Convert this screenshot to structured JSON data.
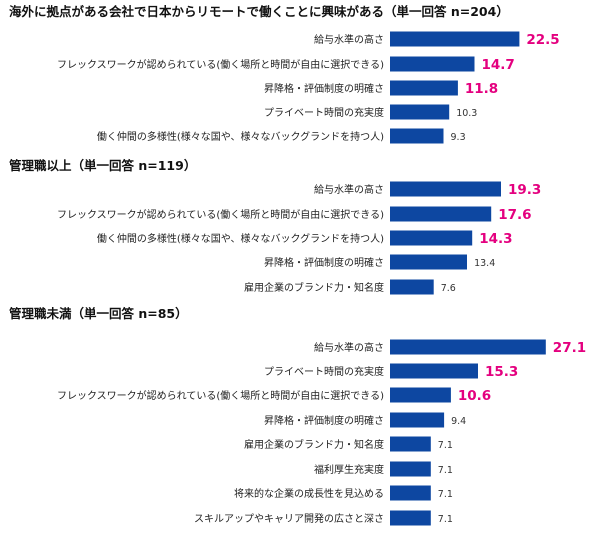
{
  "chart_data": [
    {
      "type": "bar",
      "title": "海外に拠点がある会社で日本からリモートで働くことに興味がある（単一回答 n=204）",
      "categories": [
        "給与水準の高さ",
        "フレックスワークが認められている(働く場所と時間が自由に選択できる)",
        "昇降格・評価制度の明確さ",
        "プライベート時間の充実度",
        "働く仲間の多様性(様々な国や、様々なバックグランドを持つ人)"
      ],
      "values": [
        22.5,
        14.7,
        11.8,
        10.3,
        9.3
      ],
      "highlighted": [
        true,
        true,
        true,
        false,
        false
      ]
    },
    {
      "type": "bar",
      "title": "管理職以上（単一回答 n=119）",
      "categories": [
        "給与水準の高さ",
        "フレックスワークが認められている(働く場所と時間が自由に選択できる)",
        "働く仲間の多様性(様々な国や、様々なバックグランドを持つ人)",
        "昇降格・評価制度の明確さ",
        "雇用企業のブランド力・知名度"
      ],
      "values": [
        19.3,
        17.6,
        14.3,
        13.4,
        7.6
      ],
      "highlighted": [
        true,
        true,
        true,
        false,
        false
      ]
    },
    {
      "type": "bar",
      "title": "管理職未満（単一回答 n=85）",
      "categories": [
        "給与水準の高さ",
        "プライベート時間の充実度",
        "フレックスワークが認められている(働く場所と時間が自由に選択できる)",
        "昇降格・評価制度の明確さ",
        "雇用企業のブランド力・知名度",
        "福利厚生充実度",
        "将来的な企業の成長性を見込める",
        "スキルアップやキャリア開発の広さと深さ"
      ],
      "values": [
        27.1,
        15.3,
        10.6,
        9.4,
        7.1,
        7.1,
        7.1,
        7.1
      ],
      "highlighted": [
        true,
        true,
        true,
        false,
        false,
        false,
        false,
        false
      ]
    }
  ],
  "colors": {
    "bar": "#0d47a1",
    "highlight_value": "#e4007f",
    "normal_value": "#333333"
  }
}
